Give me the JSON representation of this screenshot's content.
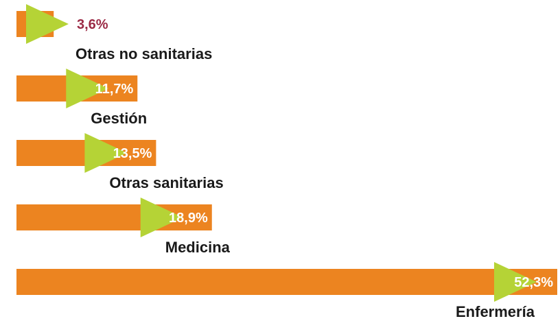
{
  "chart_data": {
    "type": "bar",
    "orientation": "horizontal",
    "categories": [
      "Otras no sanitarias",
      "Gestión",
      "Otras sanitarias",
      "Medicina",
      "Enfermería"
    ],
    "values": [
      3.6,
      11.7,
      13.5,
      18.9,
      52.3
    ],
    "value_labels": [
      "3,6%",
      "11,7%",
      "13,5%",
      "18,9%",
      "52,3%"
    ],
    "title": "",
    "xlabel": "",
    "ylabel": "",
    "xlim": [
      0,
      52.3
    ],
    "grid": false,
    "legend": "none",
    "colors": {
      "bar": "#ec8420",
      "arrow": "#b5d336",
      "value_label_inside": "#ffffff",
      "value_label_outside": "#9b2a45",
      "category_label": "#1a1a1a"
    }
  }
}
